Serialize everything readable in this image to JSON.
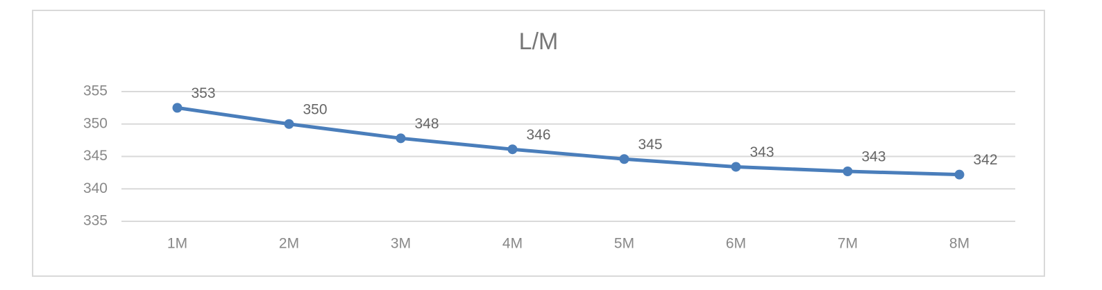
{
  "chart_data": {
    "type": "line",
    "title": "L/M",
    "categories": [
      "1M",
      "2M",
      "3M",
      "4M",
      "5M",
      "6M",
      "7M",
      "8M"
    ],
    "series": [
      {
        "color": "#4a7ebb",
        "values": [
          352.5,
          350.0,
          347.8,
          346.1,
          344.6,
          343.4,
          342.7,
          342.2
        ],
        "value_labels": [
          "353",
          "350",
          "348",
          "346",
          "345",
          "343",
          "343",
          "342"
        ]
      }
    ],
    "ylim": [
      335,
      355
    ],
    "yticks": [
      335,
      340,
      345,
      350,
      355
    ],
    "grid": true
  }
}
